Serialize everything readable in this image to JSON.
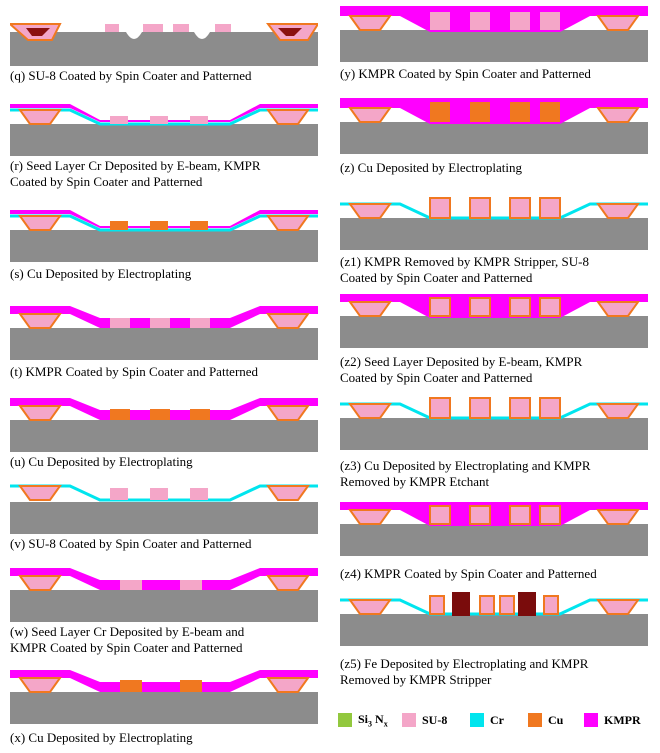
{
  "captions": {
    "q": "(q) SU-8 Coated by Spin Coater and Patterned",
    "r1": "(r) Seed Layer Cr Deposited by E-beam, KMPR",
    "r2": "Coated by Spin Coater and Patterned",
    "s": "(s) Cu Deposited by Electroplating",
    "t": "(t) KMPR Coated by Spin Coater and Patterned",
    "u": "(u) Cu Deposited by Electroplating",
    "v": "(v) SU-8 Coated by Spin Coater and Patterned",
    "w1": "(w) Seed Layer Cr Deposited by E-beam and",
    "w2": "KMPR  Coated by Spin Coater and Patterned",
    "x": "(x) Cu Deposited by Electroplating",
    "y": "(y) KMPR Coated by Spin Coater and Patterned",
    "z": "(z) Cu Deposited by Electroplating",
    "z1a": "(z1) KMPR Removed by KMPR Stripper, SU-8",
    "z1b": "Coated by Spin Coater and Patterned",
    "z2a": "(z2) Seed Layer Deposited by E-beam, KMPR",
    "z2b": "Coated by Spin Coater and Patterned",
    "z3a": "(z3) Cu Deposited by Electroplating and KMPR",
    "z3b": "Removed by KMPR Etchant",
    "z4": "(z4) KMPR Coated by Spin Coater and Patterned",
    "z5a": "(z5) Fe Deposited by Electroplating and KMPR",
    "z5b": "Removed by KMPR Stripper"
  },
  "legend": {
    "si_main": "Si",
    "si_sub3": "3",
    "si_n": " N",
    "si_subx": "x",
    "su8": "SU-8",
    "cr": "Cr",
    "cu": "Cu",
    "kmpr": "KMPR"
  },
  "colors": {
    "substrate": "#8c8c8c",
    "si3nx": "#92c83e",
    "su8": "#f4a6c8",
    "cr": "#00e5ee",
    "cu": "#f07820",
    "kmpr": "#ff00ff",
    "fe": "#7a0c0c",
    "dark_core": "#8b1010"
  }
}
